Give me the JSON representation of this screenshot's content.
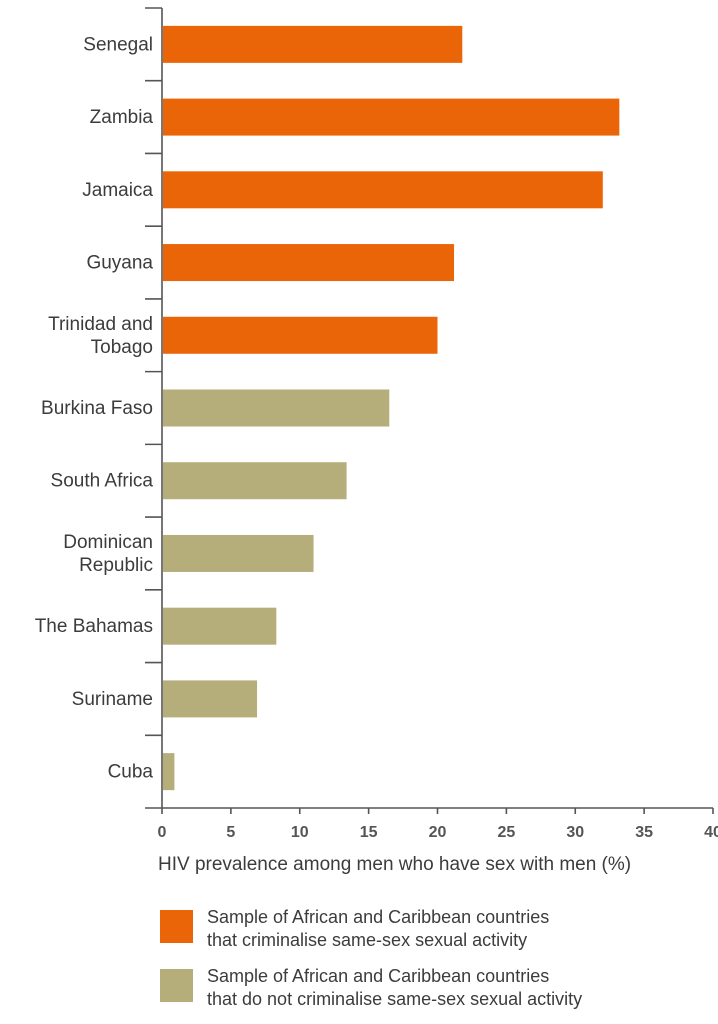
{
  "chart_data": {
    "type": "bar",
    "orientation": "horizontal",
    "categories": [
      [
        "Senegal"
      ],
      [
        "Zambia"
      ],
      [
        "Jamaica"
      ],
      [
        "Guyana"
      ],
      [
        "Trinidad and",
        "Tobago"
      ],
      [
        "Burkina Faso"
      ],
      [
        "South Africa"
      ],
      [
        "Dominican",
        "Republic"
      ],
      [
        "The Bahamas"
      ],
      [
        "Suriname"
      ],
      [
        "Cuba"
      ]
    ],
    "values": [
      21.8,
      33.2,
      32.0,
      21.2,
      20.0,
      16.5,
      13.4,
      11.0,
      8.3,
      6.9,
      0.9
    ],
    "groups": [
      "criminalise",
      "criminalise",
      "criminalise",
      "criminalise",
      "criminalise",
      "no-criminalise",
      "no-criminalise",
      "no-criminalise",
      "no-criminalise",
      "no-criminalise",
      "no-criminalise"
    ],
    "xlim": [
      0,
      40
    ],
    "xticks": [
      "0",
      "5",
      "10",
      "15",
      "20",
      "25",
      "30",
      "35",
      "40"
    ],
    "xlabel": "HIV prevalence among men who have sex with men (%)",
    "grid": false,
    "legend_position": "bottom",
    "colors": {
      "criminalise": "#ea6508",
      "no-criminalise": "#b5ad7a"
    }
  },
  "legend": {
    "criminalise": [
      "Sample of African and Caribbean countries",
      "that criminalise same-sex sexual activity"
    ],
    "no_criminalise": [
      "Sample of African and Caribbean countries",
      "that do not criminalise same-sex sexual activity"
    ]
  }
}
